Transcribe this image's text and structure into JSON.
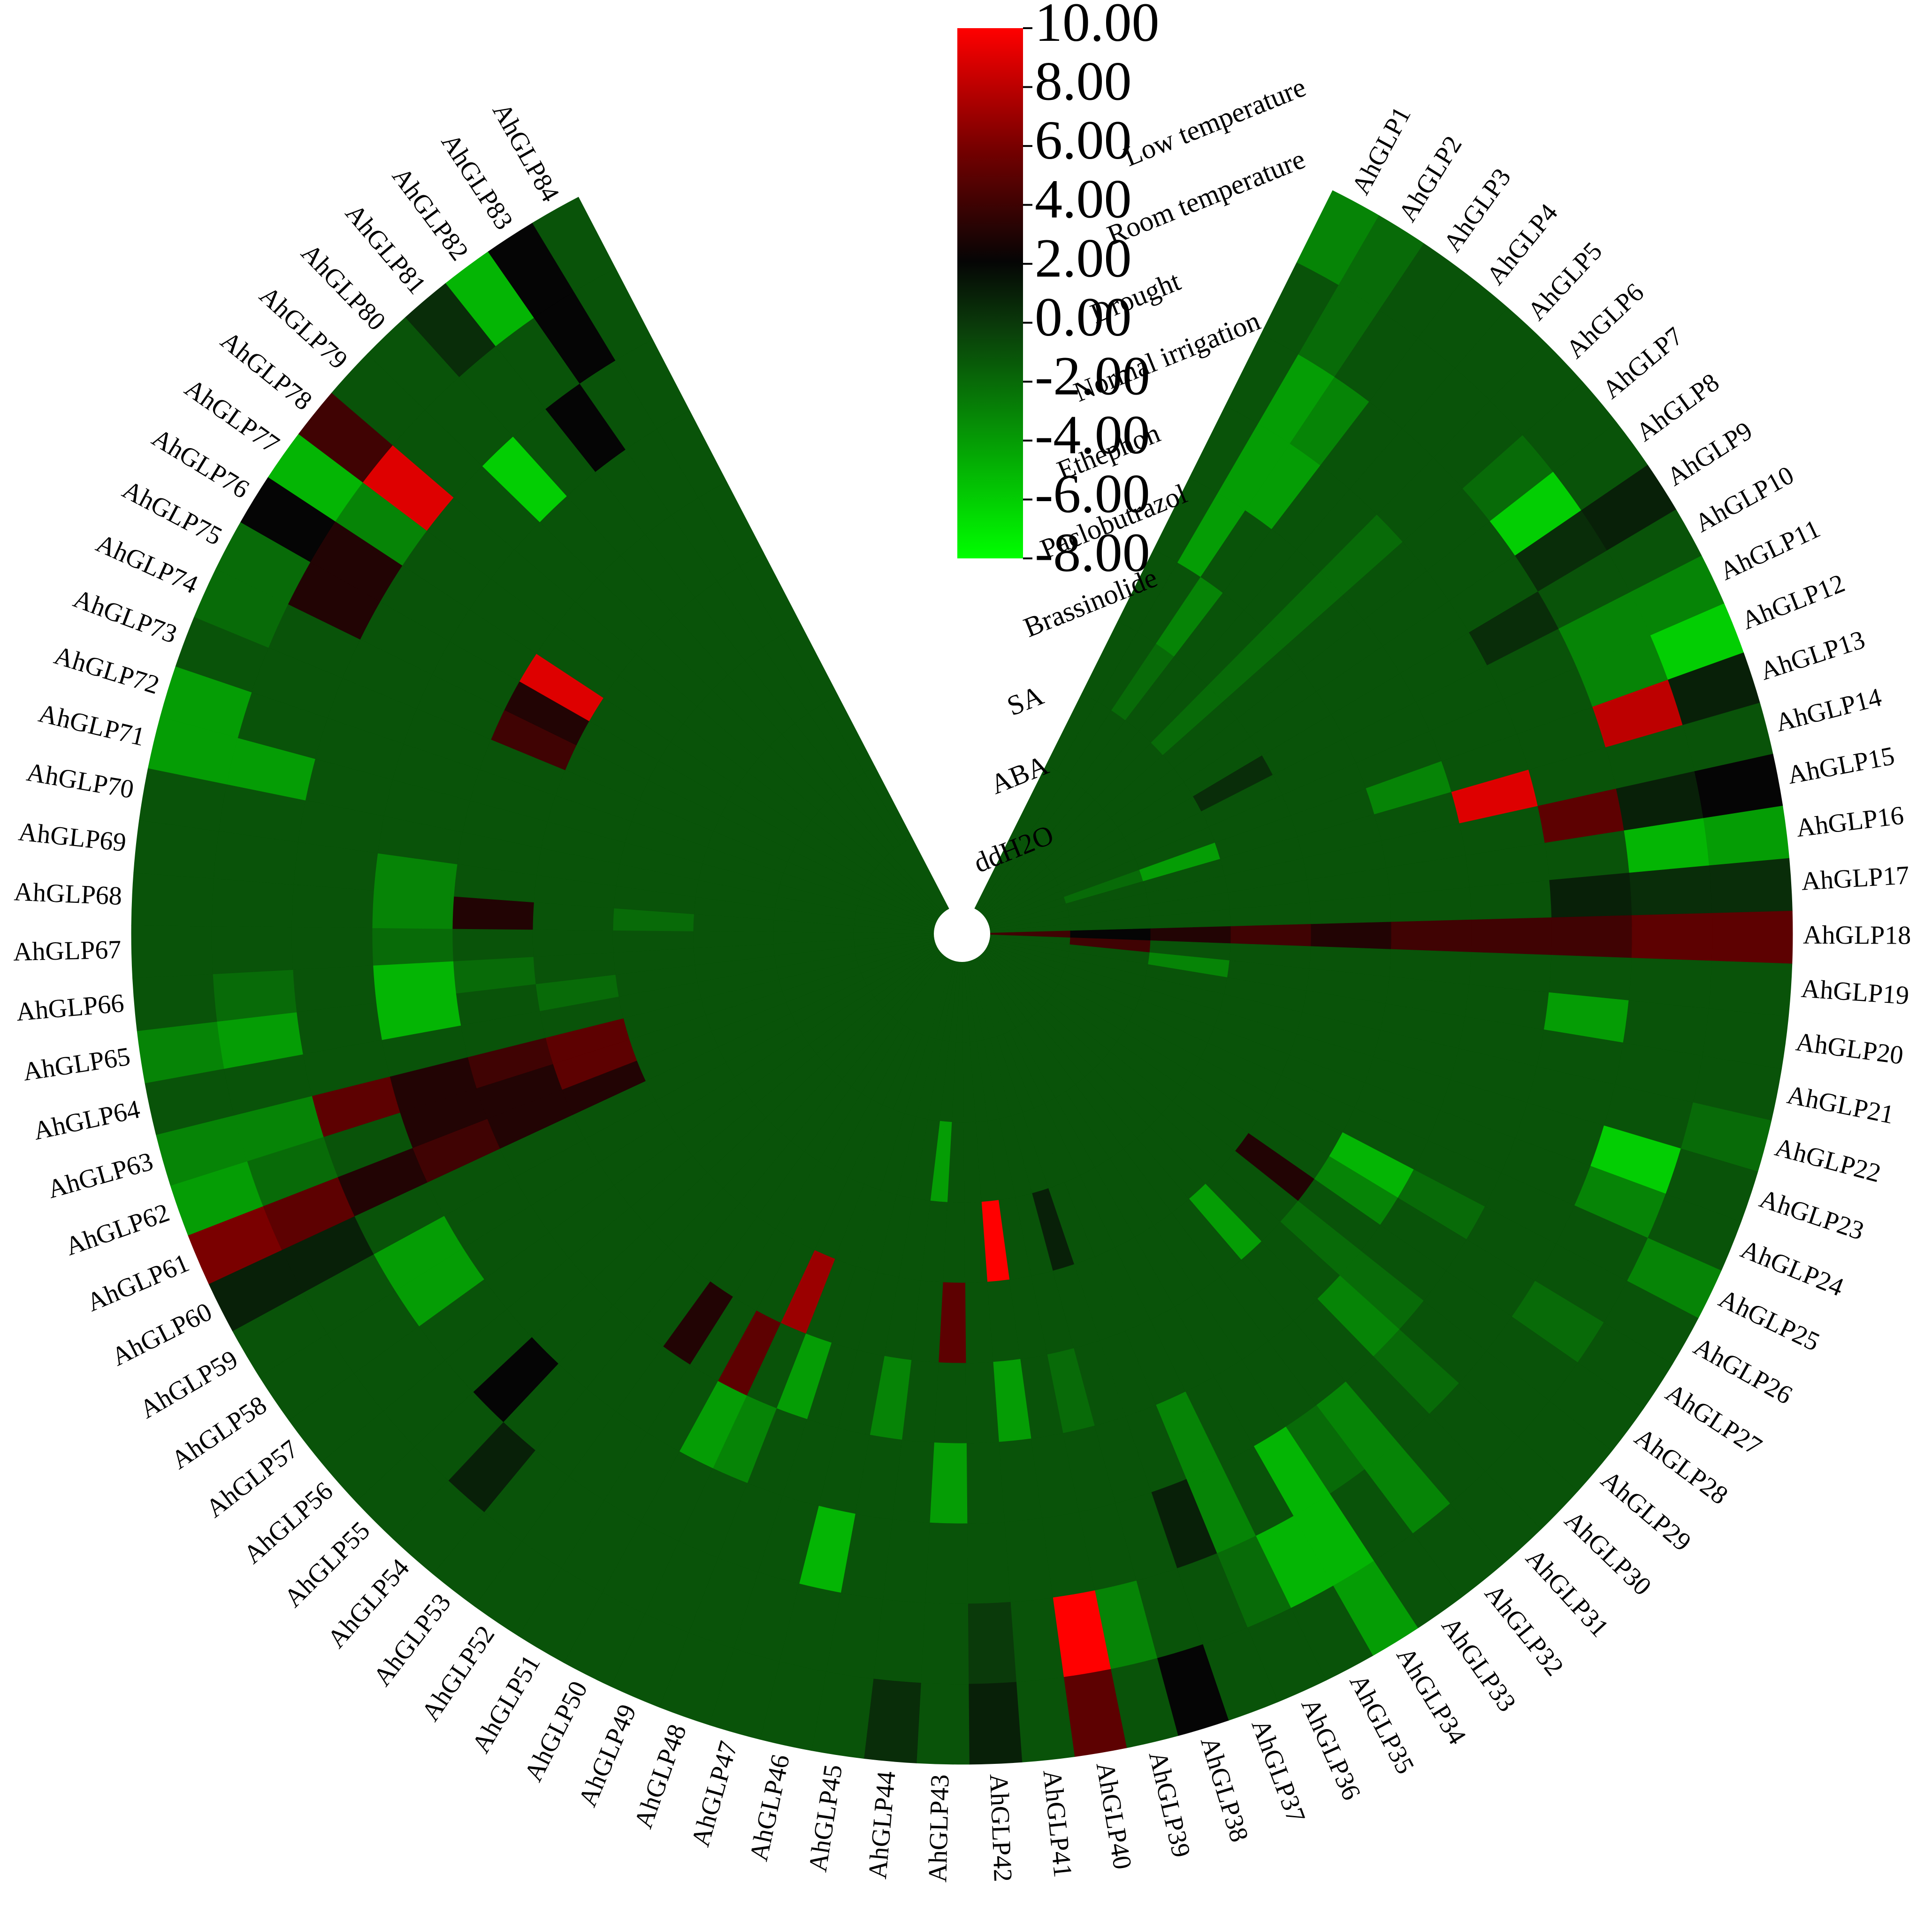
{
  "chart_data": {
    "type": "heatmap",
    "layout": "circular",
    "title": "",
    "rows": [
      "AhGLP1",
      "AhGLP2",
      "AhGLP3",
      "AhGLP4",
      "AhGLP5",
      "AhGLP6",
      "AhGLP7",
      "AhGLP8",
      "AhGLP9",
      "AhGLP10",
      "AhGLP11",
      "AhGLP12",
      "AhGLP13",
      "AhGLP14",
      "AhGLP15",
      "AhGLP16",
      "AhGLP17",
      "AhGLP18",
      "AhGLP19",
      "AhGLP20",
      "AhGLP21",
      "AhGLP22",
      "AhGLP23",
      "AhGLP24",
      "AhGLP25",
      "AhGLP26",
      "AhGLP27",
      "AhGLP28",
      "AhGLP29",
      "AhGLP30",
      "AhGLP31",
      "AhGLP32",
      "AhGLP33",
      "AhGLP34",
      "AhGLP35",
      "AhGLP36",
      "AhGLP37",
      "AhGLP38",
      "AhGLP39",
      "AhGLP40",
      "AhGLP41",
      "AhGLP42",
      "AhGLP43",
      "AhGLP44",
      "AhGLP45",
      "AhGLP46",
      "AhGLP47",
      "AhGLP48",
      "AhGLP49",
      "AhGLP50",
      "AhGLP51",
      "AhGLP52",
      "AhGLP53",
      "AhGLP54",
      "AhGLP55",
      "AhGLP56",
      "AhGLP57",
      "AhGLP58",
      "AhGLP59",
      "AhGLP60",
      "AhGLP61",
      "AhGLP62",
      "AhGLP63",
      "AhGLP64",
      "AhGLP65",
      "AhGLP66",
      "AhGLP67",
      "AhGLP68",
      "AhGLP69",
      "AhGLP70",
      "AhGLP71",
      "AhGLP72",
      "AhGLP73",
      "AhGLP74",
      "AhGLP75",
      "AhGLP76",
      "AhGLP77",
      "AhGLP78",
      "AhGLP79",
      "AhGLP80",
      "AhGLP81",
      "AhGLP82",
      "AhGLP83",
      "AhGLP84"
    ],
    "columns": [
      "ddH2O",
      "ABA",
      "SA",
      "Brassinolide",
      "Paclobutrazol",
      "Ethephon",
      "Normal irrigation",
      "Drought",
      "Room temperature",
      "Low temperature"
    ],
    "column_labels_display": [
      "Low temperature",
      "Room temperature",
      "Drought",
      "Normal irrigation",
      "Ethephon",
      "Paclobutrazol",
      "Brassinolide",
      "SA",
      "ABA",
      "ddH2O"
    ],
    "values": [
      [
        -1,
        -1,
        -1,
        -1,
        -1,
        -1,
        -1,
        -1,
        -1,
        -3
      ],
      [
        -1,
        -1,
        -1,
        -1,
        -1,
        -4,
        -4,
        -4,
        -2,
        -2
      ],
      [
        -1,
        -1,
        -1,
        -2,
        -3,
        -1,
        -4,
        -3,
        -1,
        -1
      ],
      [
        -1,
        -1,
        -1,
        -1,
        -1,
        -1,
        -1,
        -1,
        -1,
        -1
      ],
      [
        -1,
        -1,
        -1,
        -1,
        -1,
        -1,
        -1,
        -1,
        -1,
        -1
      ],
      [
        -1,
        -1,
        -1,
        -2,
        -2,
        -2,
        -2,
        -1,
        -1,
        -1
      ],
      [
        -1,
        -1,
        -1,
        -1,
        -1,
        -1,
        -1,
        -1,
        -2,
        -1
      ],
      [
        -1,
        -1,
        -1,
        -1,
        -1,
        -1,
        -1,
        -1,
        -6,
        -1
      ],
      [
        -1,
        -1,
        -1,
        -1,
        -1,
        -1,
        -1,
        -1,
        0.5,
        1
      ],
      [
        -1,
        -1,
        -1,
        0.5,
        -1,
        -1,
        -1,
        0.5,
        -1,
        -1
      ],
      [
        -1,
        -1,
        -1,
        -1,
        -1,
        -1,
        -1,
        -1,
        -3,
        -3
      ],
      [
        -1,
        -1,
        -1,
        -1,
        -1,
        -1,
        -1,
        -1,
        -3,
        -6
      ],
      [
        -1,
        -2,
        -4,
        -1,
        -1,
        -3,
        -1,
        -1,
        8,
        1
      ],
      [
        -1,
        -1,
        -1,
        -1,
        -1,
        -1,
        9,
        -1,
        -1,
        -1
      ],
      [
        -1,
        -1,
        -1,
        -1,
        -1,
        -1,
        -1,
        5,
        1,
        2
      ],
      [
        -1,
        -1,
        -1,
        -1,
        -1,
        -1,
        -1,
        -1,
        -5,
        -4
      ],
      [
        -1,
        -1,
        -1,
        -1,
        -1,
        -1,
        -1,
        1,
        0.5,
        0.5
      ],
      [
        4,
        2,
        3,
        4,
        3,
        4,
        4,
        4,
        5,
        5
      ],
      [
        -1,
        4,
        -1,
        -1,
        -1,
        -1,
        -1,
        -1,
        -1,
        -1
      ],
      [
        -1,
        -1,
        -3,
        -1,
        -1,
        -1,
        -1,
        -4,
        -1,
        -1
      ],
      [
        -1,
        -1,
        -1,
        -1,
        -1,
        -1,
        -1,
        -1,
        -1,
        -1
      ],
      [
        -1,
        -1,
        -1,
        -1,
        -1,
        -1,
        -1,
        -1,
        -1,
        -2
      ],
      [
        -1,
        -1,
        -1,
        -1,
        -1,
        -1,
        -1,
        -1,
        -6,
        -1
      ],
      [
        -1,
        -1,
        -1,
        -1,
        -1,
        -1,
        -1,
        -1,
        -3,
        -1
      ],
      [
        -1,
        -1,
        -1,
        -1,
        -1,
        -1,
        -1,
        -1,
        -1,
        -3
      ],
      [
        -1,
        -1,
        -1,
        -1,
        -1,
        -5,
        -2,
        -1,
        -1,
        -1
      ],
      [
        -1,
        -1,
        -1,
        -1,
        -1,
        -3,
        -1,
        -1,
        -2,
        -1
      ],
      [
        -1,
        -1,
        -1,
        -1,
        3,
        -1,
        -1,
        -1,
        -1,
        -1
      ],
      [
        -1,
        -1,
        -1,
        -1,
        -1,
        -2,
        -2,
        -1,
        -1,
        -1
      ],
      [
        -1,
        -1,
        -1,
        -1,
        -1,
        -1,
        -3,
        -2,
        -1,
        -1
      ],
      [
        -1,
        -1,
        -1,
        -1,
        -4,
        -1,
        -1,
        -1,
        -1,
        -1
      ],
      [
        -1,
        -1,
        -1,
        -1,
        -1,
        -1,
        -1,
        -3,
        -3,
        -1
      ],
      [
        -1,
        -1,
        -1,
        -1,
        -1,
        -1,
        -1,
        -2,
        -1,
        -1
      ],
      [
        -1,
        -1,
        -1,
        -1,
        -1,
        -1,
        -1,
        -5,
        -5,
        -4
      ],
      [
        -1,
        -1,
        -1,
        -1,
        -1,
        -1,
        -1,
        -1,
        -5,
        -1
      ],
      [
        -1,
        -1,
        -1,
        -1,
        -1,
        -1,
        -3,
        -3,
        -2,
        -1
      ],
      [
        -1,
        -1,
        -1,
        -1,
        -1,
        -1,
        -1,
        1,
        -1,
        -1
      ],
      [
        -1,
        -1,
        -1,
        1,
        -1,
        -1,
        -1,
        -1,
        -1,
        2
      ],
      [
        -1,
        -1,
        -1,
        -1,
        -1,
        -2,
        -1,
        -1,
        -3,
        -1
      ],
      [
        -1,
        -1,
        -1,
        -1,
        -1,
        -1,
        -1,
        -1,
        10,
        5
      ],
      [
        -1,
        -1,
        -1,
        10,
        -1,
        -4,
        -1,
        -1,
        -1,
        -1
      ],
      [
        -1,
        -1,
        -1,
        -1,
        -1,
        -1,
        -1,
        -1,
        0,
        1
      ],
      [
        -1,
        -1,
        -1,
        -1,
        5,
        -1,
        -4,
        -1,
        -1,
        -1
      ],
      [
        -1,
        -1,
        -4,
        -1,
        -1,
        -1,
        -1,
        -1,
        -1,
        0.5
      ],
      [
        -1,
        -1,
        -1,
        -1,
        -1,
        -3,
        -1,
        -1,
        -1,
        -1
      ],
      [
        -1,
        -1,
        -1,
        -1,
        -1,
        -1,
        -1,
        -5,
        -1,
        -1
      ],
      [
        -1,
        -1,
        -1,
        -1,
        -1,
        -1,
        -1,
        -1,
        -1,
        -1
      ],
      [
        -1,
        -1,
        -1,
        -1,
        -1,
        -4,
        -1,
        -1,
        -1,
        -1
      ],
      [
        -1,
        -1,
        -1,
        -1,
        7,
        -1,
        -3,
        -1,
        -1,
        -1
      ],
      [
        -1,
        -1,
        -1,
        -1,
        -1,
        5,
        -4,
        -1,
        -1,
        -1
      ],
      [
        -1,
        -1,
        -1,
        -1,
        -1,
        -1,
        -1,
        -1,
        -1,
        -1
      ],
      [
        -1,
        -1,
        -1,
        -1,
        -1,
        3,
        -1,
        -1,
        -1,
        -1
      ],
      [
        -1,
        -1,
        -1,
        -1,
        -1,
        -1,
        -1,
        -1,
        -1,
        -1
      ],
      [
        -1,
        -1,
        -1,
        -1,
        -1,
        -1,
        -1,
        -1,
        1,
        -1
      ],
      [
        -1,
        -1,
        -1,
        -1,
        -1,
        -1,
        -1,
        2,
        -1,
        -1
      ],
      [
        -1,
        -1,
        -1,
        -1,
        -1,
        -1,
        -1,
        -1,
        -1,
        -1
      ],
      [
        -1,
        -1,
        -1,
        -1,
        -1,
        -1,
        -1,
        -1,
        -1,
        -1
      ],
      [
        -1,
        -1,
        -1,
        -1,
        -1,
        -1,
        -1,
        -4,
        -1,
        -1
      ],
      [
        -1,
        -1,
        -1,
        -1,
        -1,
        -1,
        -1,
        -4,
        -1,
        -1
      ],
      [
        -1,
        -1,
        -1,
        -1,
        -1,
        -1,
        -1,
        -1,
        1,
        1
      ],
      [
        -1,
        -1,
        -1,
        -1,
        3,
        3,
        4,
        3,
        5,
        6
      ],
      [
        -1,
        -1,
        -1,
        -1,
        5,
        3,
        3,
        -1,
        -2,
        -4
      ],
      [
        -1,
        -1,
        -1,
        -1,
        5,
        4,
        3,
        5,
        -3,
        -3
      ],
      [
        -1,
        -1,
        -1,
        -1,
        -1,
        -1,
        -1,
        -1,
        -1,
        -1
      ],
      [
        -1,
        -1,
        -1,
        -1,
        -2,
        -1,
        -5,
        -1,
        -4,
        -3
      ],
      [
        -1,
        -1,
        -1,
        -1,
        -1,
        -2,
        -5,
        -1,
        -2,
        -1
      ],
      [
        -1,
        -1,
        -1,
        -1,
        -1,
        -1,
        -2,
        -1,
        -1,
        -1
      ],
      [
        -1,
        -1,
        -1,
        -2,
        -1,
        3,
        -3,
        -1,
        -1,
        -1
      ],
      [
        -1,
        -1,
        -1,
        -1,
        -1,
        -1,
        -3,
        -1,
        -1,
        -1
      ],
      [
        -1,
        -1,
        -1,
        -1,
        -1,
        -1,
        -1,
        -1,
        -1,
        -1
      ],
      [
        -1,
        -1,
        -1,
        -1,
        -1,
        -1,
        -1,
        -1,
        -4,
        -4
      ],
      [
        -1,
        -1,
        -1,
        -1,
        -1,
        -1,
        -1,
        -1,
        -1,
        -4
      ],
      [
        -1,
        -1,
        -1,
        -1,
        -1,
        -1,
        -1,
        -1,
        -1,
        -1
      ],
      [
        -1,
        -1,
        -1,
        -1,
        -1,
        4,
        -1,
        -1,
        -1,
        -2
      ],
      [
        -1,
        -1,
        -1,
        -1,
        -1,
        3,
        -1,
        -1,
        3,
        -2
      ],
      [
        -1,
        -1,
        -1,
        -1,
        -1,
        9,
        -1,
        -1,
        3,
        2
      ],
      [
        -1,
        -1,
        -1,
        -1,
        -1,
        -1,
        -1,
        -1,
        -3,
        -5
      ],
      [
        -1,
        -1,
        -1,
        -1,
        -1,
        -1,
        -1,
        -1,
        9,
        4
      ],
      [
        -1,
        -1,
        -1,
        -1,
        -1,
        -1,
        -1,
        -1,
        -1,
        -1
      ],
      [
        -1,
        -1,
        -1,
        -1,
        -1,
        -1,
        -1,
        -6,
        -1,
        -1
      ],
      [
        -1,
        -1,
        -1,
        -1,
        -1,
        -1,
        -1,
        -1,
        -1,
        0.5
      ],
      [
        -1,
        -1,
        -1,
        -1,
        -1,
        -1,
        -1,
        2,
        -1,
        -5
      ],
      [
        -1,
        -1,
        -1,
        -1,
        -1,
        -1,
        -1,
        -1,
        2,
        2
      ],
      [
        -1,
        -1,
        -1,
        -1,
        -1,
        -1,
        -1,
        -1,
        -1,
        -1
      ]
    ],
    "color_scale": {
      "min": -8,
      "max": 10,
      "stops": [
        {
          "value": -8,
          "color": "#00ff00"
        },
        {
          "value": 0,
          "color": "#0a3a0a"
        },
        {
          "value": 2,
          "color": "#050505"
        },
        {
          "value": 6,
          "color": "#7a0000"
        },
        {
          "value": 10,
          "color": "#ff0000"
        }
      ],
      "ticks": [
        "10.00",
        "8.00",
        "6.00",
        "4.00",
        "2.00",
        "0.00",
        "-2.00",
        "-4.00",
        "-6.00",
        "-8.00"
      ]
    },
    "legend_position": "top-center"
  }
}
